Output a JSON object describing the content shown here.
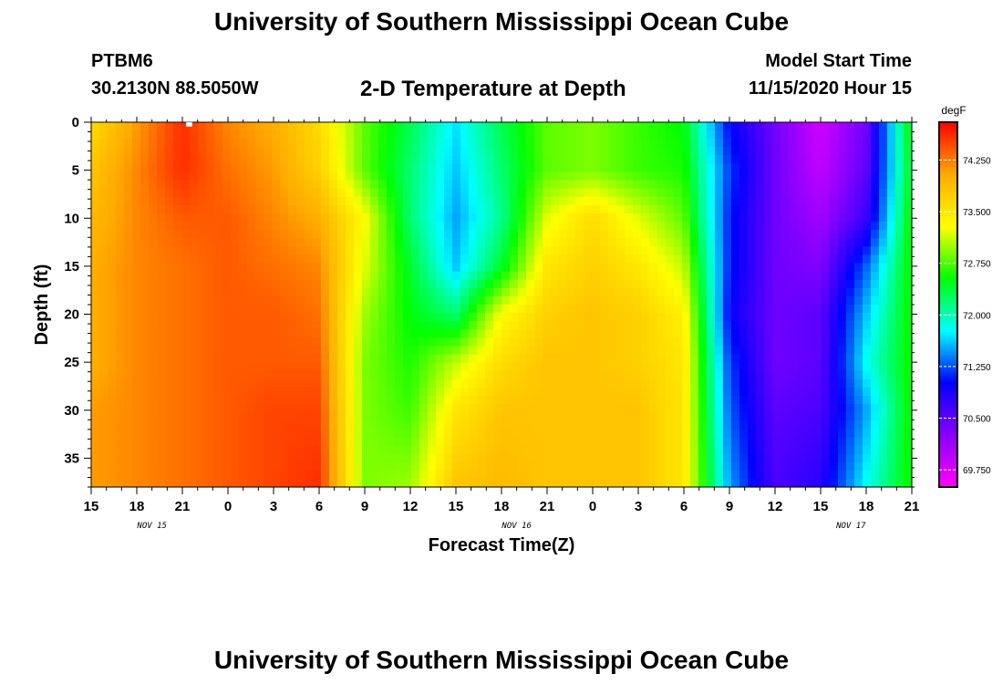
{
  "header": {
    "title": "University of Southern Mississippi Ocean Cube",
    "station_id": "PTBM6",
    "coordinates": "30.2130N 88.5050W",
    "plot_title": "2-D Temperature at Depth",
    "model_label": "Model Start Time",
    "model_start": "11/15/2020 Hour 15"
  },
  "footer": {
    "title": "University of Southern Mississippi Ocean Cube"
  },
  "chart_data": {
    "type": "heatmap",
    "title": "2-D Temperature at Depth",
    "xlabel": "Forecast Time(Z)",
    "ylabel": "Depth (ft)",
    "x_tick_labels": [
      "15",
      "18",
      "21",
      "0",
      "3",
      "6",
      "9",
      "12",
      "15",
      "18",
      "21",
      "0",
      "3",
      "6",
      "9",
      "12",
      "15",
      "18",
      "21"
    ],
    "date_labels": [
      {
        "label": "NOV 15",
        "at_hour": 19
      },
      {
        "label": "NOV 16",
        "at_hour": 43
      },
      {
        "label": "NOV 17",
        "at_hour": 65
      }
    ],
    "x_range_hours": [
      15,
      69
    ],
    "y_ticks": [
      0,
      5,
      10,
      15,
      20,
      25,
      30,
      35
    ],
    "ylim": [
      0,
      38
    ],
    "y_inverted": true,
    "x_hours": [
      15,
      18,
      21,
      24,
      27,
      30,
      33,
      36,
      39,
      42,
      45,
      48,
      51,
      54,
      57,
      60,
      63,
      66,
      69
    ],
    "depths": [
      0,
      5,
      10,
      15,
      20,
      25,
      30,
      38
    ],
    "temperature_degF": [
      [
        73.6,
        74.1,
        74.6,
        74.2,
        74.0,
        73.6,
        72.8,
        72.3,
        71.7,
        72.3,
        72.8,
        72.9,
        72.7,
        72.5,
        71.0,
        70.4,
        69.8,
        70.4,
        72.6
      ],
      [
        73.8,
        74.2,
        74.6,
        74.3,
        74.1,
        73.7,
        72.8,
        72.2,
        71.6,
        72.2,
        72.8,
        72.9,
        72.7,
        72.6,
        71.2,
        70.4,
        69.9,
        70.5,
        72.5
      ],
      [
        73.9,
        74.2,
        74.4,
        74.4,
        74.2,
        74.0,
        73.3,
        72.2,
        71.5,
        72.1,
        73.2,
        73.6,
        73.2,
        72.8,
        71.1,
        70.4,
        70.1,
        70.7,
        72.6
      ],
      [
        74.0,
        74.2,
        74.3,
        74.4,
        74.3,
        74.2,
        73.2,
        72.4,
        71.6,
        72.4,
        73.5,
        73.7,
        73.5,
        73.1,
        71.1,
        70.4,
        70.3,
        71.3,
        72.6
      ],
      [
        74.0,
        74.2,
        74.3,
        74.4,
        74.4,
        74.3,
        73.0,
        72.5,
        72.2,
        73.3,
        73.7,
        73.8,
        73.7,
        73.4,
        71.0,
        70.4,
        70.5,
        71.6,
        72.6
      ],
      [
        74.0,
        74.2,
        74.3,
        74.4,
        74.4,
        74.4,
        72.9,
        72.6,
        73.1,
        73.6,
        73.8,
        73.8,
        73.7,
        73.5,
        71.2,
        70.4,
        70.5,
        71.8,
        72.6
      ],
      [
        74.1,
        74.2,
        74.3,
        74.4,
        74.5,
        74.5,
        72.9,
        72.7,
        73.5,
        73.8,
        73.8,
        73.8,
        73.8,
        73.5,
        71.3,
        70.5,
        70.6,
        71.5,
        72.6
      ],
      [
        74.1,
        74.2,
        74.3,
        74.4,
        74.5,
        74.6,
        72.9,
        73.0,
        73.8,
        73.9,
        73.8,
        73.8,
        73.8,
        73.5,
        71.5,
        70.6,
        70.8,
        71.8,
        72.6
      ]
    ],
    "colorbar": {
      "unit": "degF",
      "tick_labels": [
        "74.250",
        "73.500",
        "72.750",
        "72.000",
        "71.250",
        "70.500",
        "69.750"
      ],
      "range": [
        69.5,
        74.8
      ],
      "palette": [
        "#ff00ff",
        "#8800ff",
        "#0000ff",
        "#00ffff",
        "#00ff00",
        "#ffff00",
        "#ffaa00",
        "#ff0000"
      ]
    }
  }
}
